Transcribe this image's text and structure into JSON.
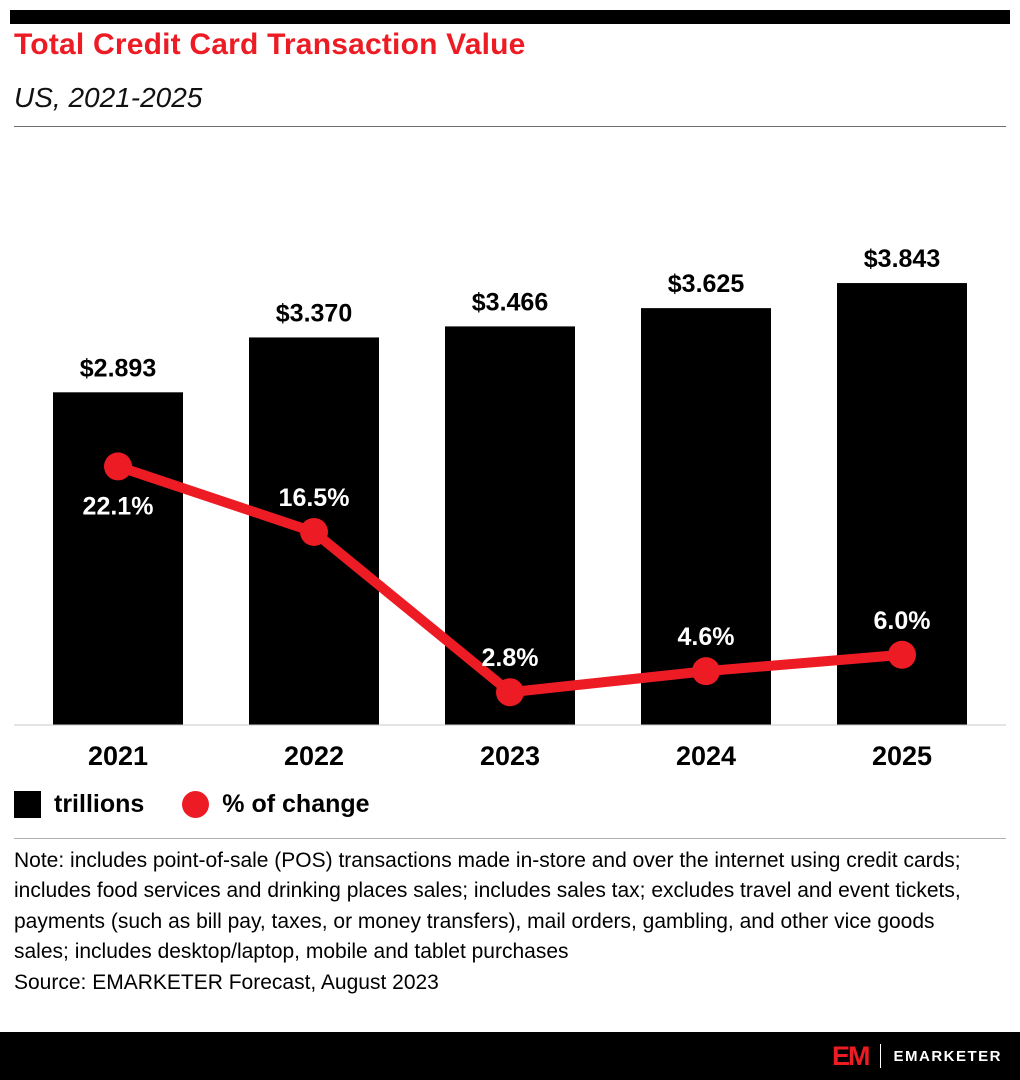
{
  "colors": {
    "accent": "#ed1c24",
    "bar": "#000000",
    "axis": "#c8c8c8"
  },
  "header": {
    "title": "Total Credit Card Transaction Value",
    "subtitle": "US, 2021-2025"
  },
  "chart_data": {
    "type": "bar",
    "categories": [
      "2021",
      "2022",
      "2023",
      "2024",
      "2025"
    ],
    "series": [
      {
        "name": "trillions",
        "type": "bar",
        "values": [
          2.893,
          3.37,
          3.466,
          3.625,
          3.843
        ],
        "labels": [
          "$2.893",
          "$3.370",
          "$3.466",
          "$3.625",
          "$3.843"
        ],
        "color": "#000000"
      },
      {
        "name": "% of change",
        "type": "line",
        "values": [
          22.1,
          16.5,
          2.8,
          4.6,
          6.0
        ],
        "labels": [
          "22.1%",
          "16.5%",
          "2.8%",
          "4.6%",
          "6.0%"
        ],
        "color": "#ed1c24",
        "label_side": [
          "below",
          "above",
          "above",
          "above",
          "above"
        ]
      }
    ],
    "legend": [
      {
        "label": "trillions",
        "swatch": "square",
        "color": "#000000"
      },
      {
        "label": "% of change",
        "swatch": "circle",
        "color": "#ed1c24"
      }
    ],
    "legend_position": "bottom-left",
    "grid": false,
    "ylim_bars": [
      0,
      4.3
    ],
    "ylim_line": [
      0,
      38
    ]
  },
  "note": "Note: includes point-of-sale (POS) transactions made in-store and over the internet using credit cards; includes food services and drinking places sales; includes sales tax; excludes travel and event tickets, payments (such as bill pay, taxes, or money transfers), mail orders, gambling, and other vice goods sales; includes desktop/laptop, mobile and tablet purchases",
  "source": "Source: EMARKETER Forecast, August 2023",
  "footer": {
    "logo_text": "EM",
    "brand": "EMARKETER"
  }
}
